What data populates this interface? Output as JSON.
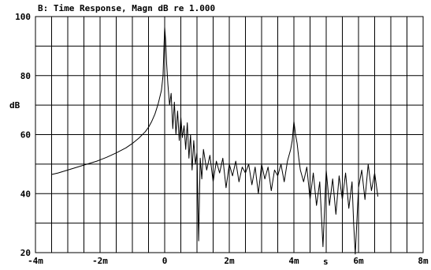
{
  "chart_data": {
    "type": "line",
    "title": "B: Time Response, Magn dB re 1.000",
    "ylabel": "dB",
    "x_unit_label": "s",
    "xlim": [
      -4,
      8
    ],
    "ylim": [
      20,
      100
    ],
    "grid": true,
    "x_ticks": [
      {
        "value": -4,
        "label": "-4m"
      },
      {
        "value": -2,
        "label": "-2m"
      },
      {
        "value": 0,
        "label": "0"
      },
      {
        "value": 2,
        "label": "2m"
      },
      {
        "value": 4,
        "label": "4m"
      },
      {
        "value": 6,
        "label": "6m"
      },
      {
        "value": 8,
        "label": "8m"
      }
    ],
    "y_ticks": [
      {
        "value": 100,
        "label": "100"
      },
      {
        "value": 80,
        "label": "80"
      },
      {
        "value": 60,
        "label": "60"
      },
      {
        "value": 40,
        "label": "40"
      },
      {
        "value": 20,
        "label": "20"
      }
    ],
    "series": [
      {
        "color": "#000000",
        "x": [
          -3.5,
          -3.3,
          -3.0,
          -2.7,
          -2.4,
          -2.1,
          -1.8,
          -1.5,
          -1.2,
          -1.0,
          -0.8,
          -0.6,
          -0.5,
          -0.4,
          -0.3,
          -0.2,
          -0.1,
          -0.05,
          0.0,
          0.03,
          0.06,
          0.1,
          0.15,
          0.2,
          0.25,
          0.3,
          0.35,
          0.4,
          0.45,
          0.5,
          0.55,
          0.6,
          0.65,
          0.7,
          0.75,
          0.8,
          0.85,
          0.9,
          0.95,
          1.0,
          1.05,
          1.1,
          1.15,
          1.2,
          1.3,
          1.4,
          1.5,
          1.6,
          1.7,
          1.8,
          1.9,
          2.0,
          2.1,
          2.2,
          2.3,
          2.4,
          2.5,
          2.6,
          2.7,
          2.8,
          2.9,
          3.0,
          3.1,
          3.2,
          3.3,
          3.4,
          3.5,
          3.6,
          3.7,
          3.8,
          3.9,
          3.95,
          4.0,
          4.05,
          4.1,
          4.15,
          4.2,
          4.3,
          4.4,
          4.5,
          4.6,
          4.7,
          4.8,
          4.9,
          5.0,
          5.1,
          5.2,
          5.3,
          5.4,
          5.5,
          5.6,
          5.7,
          5.8,
          5.85,
          5.9,
          6.0,
          6.1,
          6.2,
          6.3,
          6.4,
          6.5,
          6.6
        ],
        "y": [
          46.5,
          47.0,
          48.0,
          49.0,
          50.0,
          51.0,
          52.3,
          53.8,
          55.5,
          57.0,
          58.8,
          61.0,
          62.5,
          64.5,
          67.0,
          70.5,
          75.0,
          80.0,
          96.5,
          92.0,
          84.0,
          77.0,
          70.0,
          74.0,
          62.0,
          71.0,
          60.0,
          68.0,
          58.0,
          66.0,
          59.0,
          63.0,
          55.0,
          64.0,
          52.0,
          60.0,
          48.0,
          58.0,
          50.0,
          54.0,
          24.0,
          52.0,
          45.0,
          55.0,
          48.0,
          53.0,
          44.0,
          51.0,
          47.0,
          52.0,
          42.0,
          50.0,
          46.0,
          51.0,
          44.0,
          49.0,
          47.0,
          50.0,
          43.0,
          49.0,
          40.0,
          50.0,
          45.0,
          49.0,
          41.0,
          48.0,
          46.0,
          50.0,
          44.0,
          51.0,
          55.0,
          58.0,
          64.5,
          60.0,
          57.0,
          52.0,
          48.0,
          44.0,
          49.0,
          38.0,
          47.0,
          36.0,
          44.0,
          22.0,
          48.0,
          36.0,
          45.0,
          33.0,
          46.0,
          38.0,
          47.0,
          35.0,
          44.0,
          30.0,
          19.5,
          42.0,
          48.0,
          38.0,
          50.0,
          41.0,
          47.0,
          39.0
        ]
      }
    ]
  }
}
